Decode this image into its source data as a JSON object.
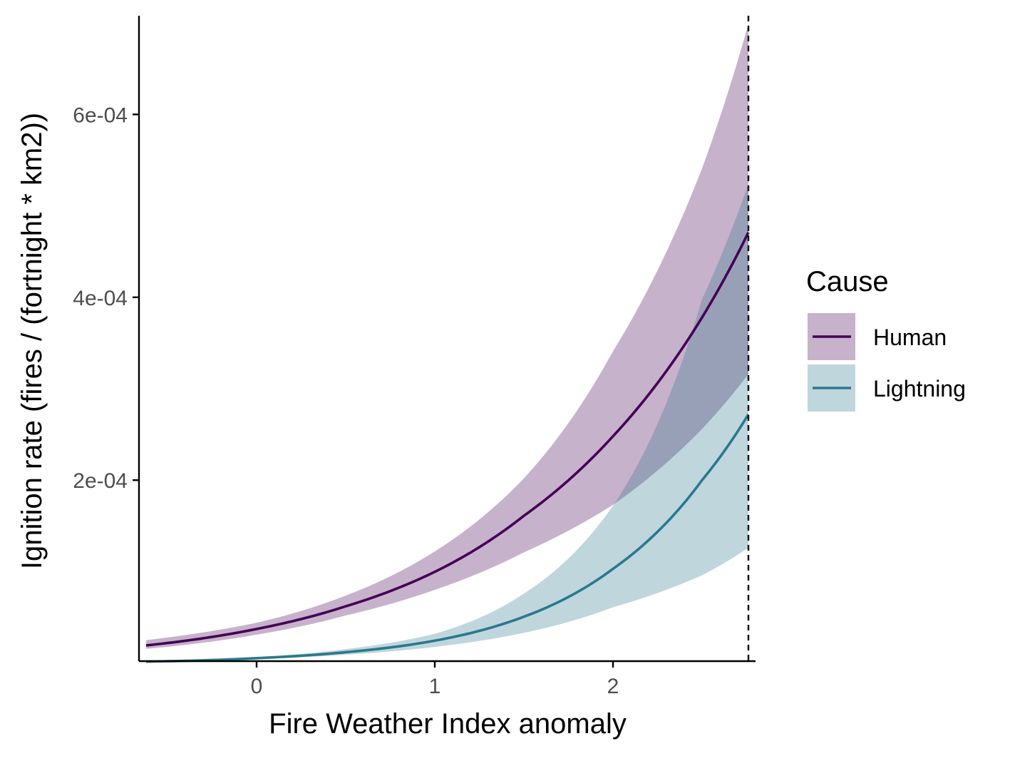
{
  "chart_data": {
    "type": "line",
    "title": "",
    "xlabel": "Fire Weather Index anomaly",
    "ylabel": "Ignition rate (fires / (fortnight * km2))",
    "xlim": [
      -0.66,
      2.8
    ],
    "ylim": [
      2e-06,
      0.000708
    ],
    "x_ticks": [
      {
        "value": 0,
        "label": "0"
      },
      {
        "value": 1,
        "label": "1"
      },
      {
        "value": 2,
        "label": "2"
      }
    ],
    "y_ticks": [
      {
        "value": 0.0002,
        "label": "2e-04"
      },
      {
        "value": 0.0004,
        "label": "4e-04"
      },
      {
        "value": 0.0006,
        "label": "6e-04"
      }
    ],
    "grid": false,
    "legend": {
      "title": "Cause",
      "placement": "right"
    },
    "reference_line": {
      "x": 2.76,
      "style": "dashed",
      "color": "#000000"
    },
    "series": [
      {
        "name": "Human",
        "line_color": "#440154",
        "ribbon_color": "#C7B1CB",
        "x": [
          -0.62,
          0.0,
          0.5,
          1.0,
          1.5,
          2.0,
          2.5,
          2.76
        ],
        "y": [
          1.92e-05,
          3.72e-05,
          6.2e-05,
          9.97e-05,
          0.000161,
          0.000248,
          0.000378,
          0.000471
        ],
        "lower": [
          1.55e-05,
          3.1e-05,
          5.2e-05,
          8e-05,
          0.000121,
          0.000173,
          0.000256,
          0.000316
        ],
        "upper": [
          2.5e-05,
          4.4e-05,
          7.37e-05,
          0.000122,
          0.000202,
          0.000341,
          0.000541,
          0.000699
        ]
      },
      {
        "name": "Lightning",
        "line_color": "#2A788E",
        "ribbon_color": "#BFD6DC",
        "x": [
          -0.62,
          0.0,
          0.5,
          1.0,
          1.5,
          2.0,
          2.5,
          2.76
        ],
        "y": [
          1.5e-06,
          5.3e-06,
          1.18e-05,
          2.44e-05,
          5.06e-05,
          0.000103,
          0.0002,
          0.000272
        ],
        "lower": [
          1e-06,
          4.3e-06,
          9.1e-06,
          1.76e-05,
          3.3e-05,
          6.1e-05,
          9.6e-05,
          0.000126
        ],
        "upper": [
          2.5e-06,
          6.5e-06,
          1.52e-05,
          3.2e-05,
          7.6e-05,
          0.000172,
          0.000398,
          0.000524
        ]
      }
    ]
  }
}
